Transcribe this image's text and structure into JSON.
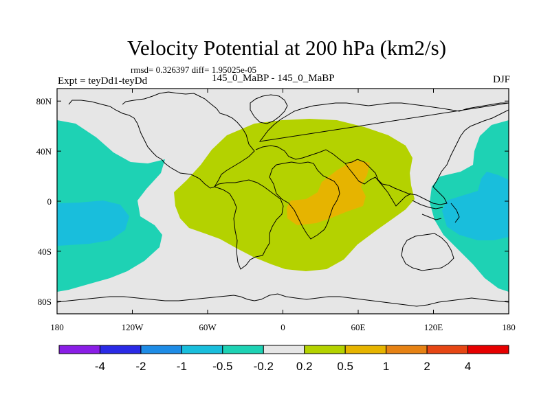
{
  "figure": {
    "title": "Velocity Potential at 200 hPa (km2/s)",
    "stats": "rmsd= 0.326397 diff= 1.95025e-05",
    "experiment": "Expt = teyDd1-teyDd",
    "comparison": "145_0_MaBP - 145_0_MaBP",
    "season": "DJF"
  },
  "chart_data": {
    "type": "heatmap",
    "subtype": "filled-contour-map",
    "title": "Velocity Potential at 200 hPa (km2/s)",
    "variable": "velocity potential difference",
    "units": "km2/s",
    "level_hPa": 200,
    "season": "DJF",
    "experiment": "teyDd1-teyDd",
    "rmsd": 0.326397,
    "diff": 1.95025e-05,
    "x_axis": {
      "range": [
        -180,
        180
      ],
      "ticks": [
        -180,
        -120,
        -60,
        0,
        60,
        120,
        180
      ],
      "tick_labels": [
        "180",
        "120W",
        "60W",
        "0",
        "60E",
        "120E",
        "180"
      ]
    },
    "y_axis": {
      "range": [
        -90,
        90
      ],
      "ticks": [
        80,
        40,
        0,
        -40,
        -80
      ],
      "tick_labels": [
        "80N",
        "40N",
        "0",
        "40S",
        "80S"
      ]
    },
    "colorbar": {
      "levels": [
        "-4",
        "-2",
        "-1",
        "-0.5",
        "-0.2",
        "0.2",
        "0.5",
        "1",
        "2",
        "4"
      ],
      "colors": [
        "#8a1ee6",
        "#2a2ae6",
        "#1e8ce6",
        "#19bedc",
        "#1ed2b4",
        "#e6e6e6",
        "#b4d200",
        "#e6b400",
        "#e68214",
        "#e64614",
        "#e60000"
      ]
    },
    "regions": [
      {
        "name": "western-pacific-negative",
        "level": "-0.5..-0.2",
        "color": "#1ed2b4"
      },
      {
        "name": "western-pacific-negative-core",
        "level": "-1..-0.5",
        "color": "#19bedc"
      },
      {
        "name": "eastern-pacific-negative",
        "level": "-0.5..-0.2",
        "color": "#1ed2b4"
      },
      {
        "name": "eastern-pacific-negative-core",
        "level": "-1..-0.5",
        "color": "#19bedc"
      },
      {
        "name": "africa-positive",
        "level": "0.2..0.5",
        "color": "#b4d200"
      },
      {
        "name": "africa-positive-core",
        "level": "0.5..1",
        "color": "#e6b400"
      }
    ]
  }
}
